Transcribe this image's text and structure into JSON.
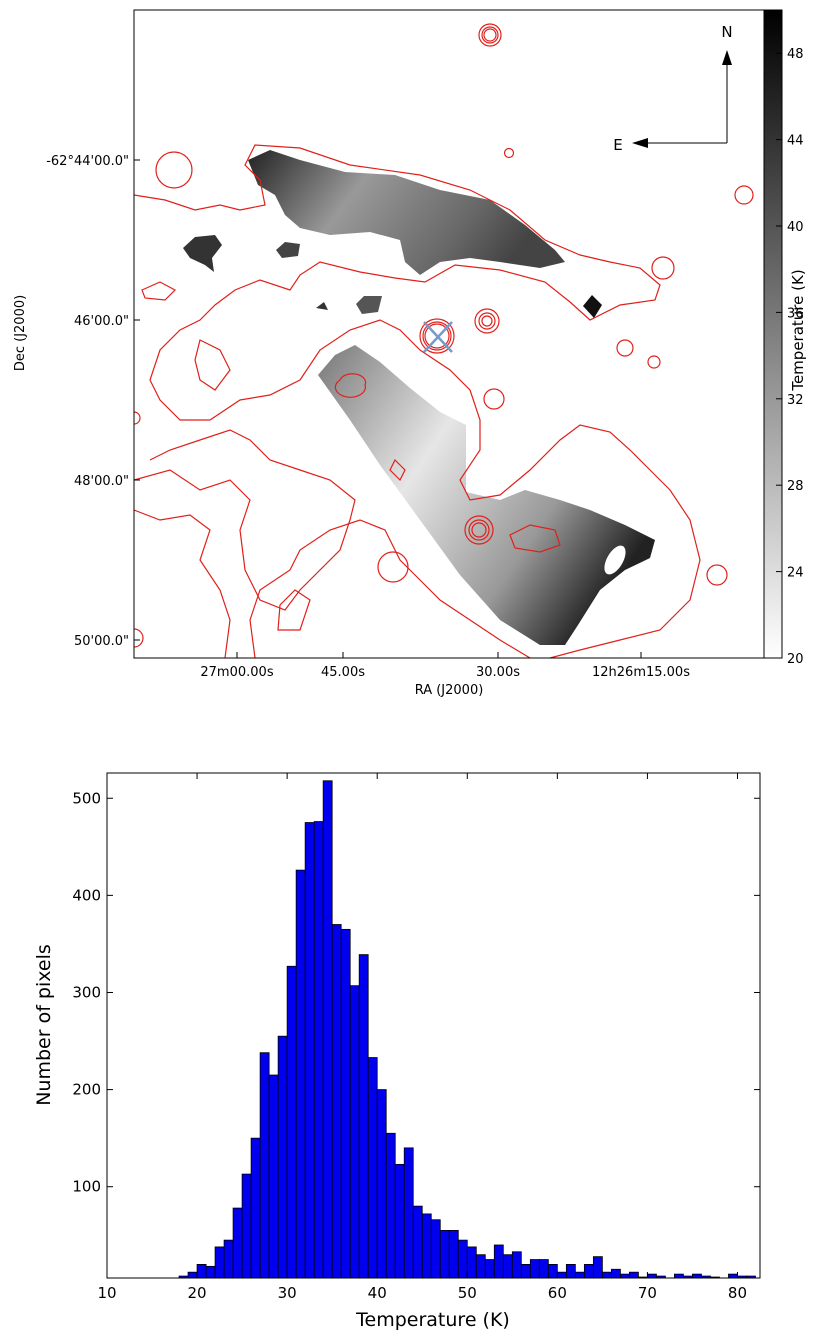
{
  "chart_data": [
    {
      "type": "image",
      "xlabel": "RA (J2000)",
      "ylabel": "Dec (J2000)",
      "xtick_labels": [
        "27m00.00s",
        "45.00s",
        "30.00s",
        "12h26m15.00s"
      ],
      "ytick_labels": [
        "-62°44'00.0\"",
        "46'00.0\"",
        "48'00.0\"",
        "50'00.0\""
      ],
      "compass": [
        "N",
        "E"
      ],
      "colorbar_label": "Temperature (K)",
      "clim": [
        20,
        50
      ],
      "cticks": [
        20,
        24,
        28,
        32,
        36,
        40,
        44,
        48
      ],
      "contour_color": "#e0201b"
    },
    {
      "type": "histogram",
      "xlabel": "Temperature (K)",
      "ylabel": "Number of pixels",
      "color": "#0000ee",
      "bins": [
        15,
        16,
        17,
        18,
        19,
        20,
        21,
        22,
        23,
        24,
        25,
        26,
        27,
        28,
        29,
        30,
        31,
        32,
        33,
        34,
        35,
        36,
        37,
        38,
        39,
        40,
        41,
        42,
        43,
        44,
        45,
        46,
        47,
        48,
        49,
        50,
        51,
        52,
        53,
        54,
        55,
        56,
        57,
        58,
        59,
        60,
        61,
        62,
        63,
        64,
        65,
        66,
        67,
        68,
        69,
        70,
        71,
        72,
        73,
        74,
        75,
        76,
        77,
        78,
        79,
        80,
        81,
        82
      ],
      "values": [
        2,
        0,
        5,
        8,
        12,
        20,
        18,
        38,
        45,
        78,
        113,
        150,
        238,
        215,
        255,
        327,
        426,
        475,
        476,
        518,
        370,
        365,
        307,
        339,
        233,
        200,
        155,
        123,
        140,
        80,
        72,
        66,
        55,
        55,
        45,
        38,
        30,
        25,
        40,
        30,
        33,
        20,
        25,
        25,
        20,
        12,
        20,
        12,
        20,
        28,
        12,
        15,
        10,
        12,
        7,
        10,
        8,
        6,
        10,
        8,
        10,
        8,
        7,
        5,
        10,
        8,
        8
      ],
      "xlim": [
        10,
        82.5
      ],
      "ylim": [
        6,
        526
      ],
      "xticks": [
        10,
        20,
        30,
        40,
        50,
        60,
        70,
        80
      ],
      "yticks": [
        100,
        200,
        300,
        400,
        500
      ]
    }
  ]
}
